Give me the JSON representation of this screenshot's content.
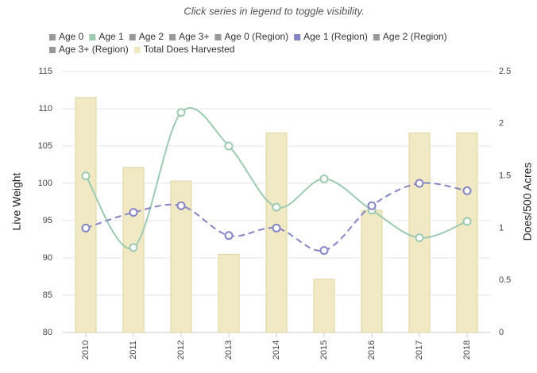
{
  "chart_data": {
    "type": "combo",
    "note": "Click series in legend to toggle visibility.",
    "categories": [
      "2010",
      "2011",
      "2012",
      "2013",
      "2014",
      "2015",
      "2016",
      "2017",
      "2018"
    ],
    "y_label": "Live Weight",
    "y2_label": "Does/500 Acres",
    "ylim": [
      80,
      115
    ],
    "yticks": [
      80,
      85,
      90,
      95,
      100,
      105,
      110,
      115
    ],
    "y2lim": [
      0,
      2.5
    ],
    "y2ticks": [
      0,
      0.5,
      1,
      1.5,
      2,
      2.5
    ],
    "grid": true,
    "hidden_color": "#999999",
    "series": [
      {
        "name": "Age 0",
        "visible": false,
        "kind": "line",
        "values": [
          null,
          null,
          null,
          null,
          null,
          null,
          null,
          null,
          null
        ]
      },
      {
        "name": "Age 1",
        "visible": true,
        "kind": "line",
        "dash": false,
        "color": "#9ccbb1",
        "values": [
          101,
          91.4,
          109.5,
          105,
          96.8,
          100.6,
          96.4,
          92.7,
          94.9
        ]
      },
      {
        "name": "Age 2",
        "visible": false,
        "kind": "line",
        "values": [
          null,
          null,
          null,
          null,
          null,
          null,
          null,
          null,
          null
        ]
      },
      {
        "name": "Age 3+",
        "visible": false,
        "kind": "line",
        "values": [
          null,
          null,
          null,
          null,
          null,
          null,
          null,
          null,
          null
        ]
      },
      {
        "name": "Age 0 (Region)",
        "visible": false,
        "kind": "line",
        "values": [
          null,
          null,
          null,
          null,
          null,
          null,
          null,
          null,
          null
        ]
      },
      {
        "name": "Age 1 (Region)",
        "visible": true,
        "kind": "line",
        "dash": true,
        "color": "#8585c6",
        "values": [
          94,
          96.1,
          97,
          93,
          94,
          91,
          97,
          100,
          99
        ]
      },
      {
        "name": "Age 2 (Region)",
        "visible": false,
        "kind": "line",
        "values": [
          null,
          null,
          null,
          null,
          null,
          null,
          null,
          null,
          null
        ]
      },
      {
        "name": "Age 3+ (Region)",
        "visible": false,
        "kind": "line",
        "values": [
          null,
          null,
          null,
          null,
          null,
          null,
          null,
          null,
          null
        ]
      },
      {
        "name": "Total Does Harvested",
        "visible": true,
        "kind": "bar",
        "axis": "y2",
        "color": "#f1e9c4",
        "values": [
          2.25,
          1.58,
          1.45,
          0.75,
          1.91,
          0.51,
          1.17,
          1.91,
          1.91
        ]
      }
    ]
  }
}
